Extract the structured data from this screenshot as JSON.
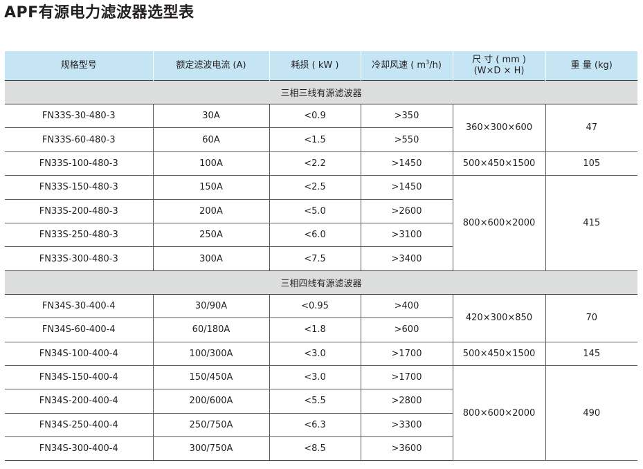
{
  "title": "APF有源电力滤波器选型表",
  "headers": {
    "model": "规格型号",
    "current": "额定滤波电流 (A)",
    "loss": "耗损 ( kW )",
    "airflow_pre": "冷却风速 ( m",
    "airflow_sup": "3",
    "airflow_post": "/h)",
    "size_line1": "尺 寸 ( mm )",
    "size_line2": "(W×D × H)",
    "weight": "重 量 (kg)"
  },
  "groups": [
    {
      "name": "三相三线有源滤波器",
      "rows": [
        {
          "model": "FN33S-30-480-3",
          "current": "30A",
          "loss": "<0.9",
          "airflow": ">350",
          "size": "360×300×600",
          "weight": "47",
          "span": 2
        },
        {
          "model": "FN33S-60-480-3",
          "current": "60A",
          "loss": "<1.5",
          "airflow": ">550"
        },
        {
          "model": "FN33S-100-480-3",
          "current": "100A",
          "loss": "<2.2",
          "airflow": ">1450",
          "size": "500×450×1500",
          "weight": "105",
          "span": 1
        },
        {
          "model": "FN33S-150-480-3",
          "current": "150A",
          "loss": "<2.5",
          "airflow": ">1450",
          "size": "800×600×2000",
          "weight": "415",
          "span": 4
        },
        {
          "model": "FN33S-200-480-3",
          "current": "200A",
          "loss": "<5.0",
          "airflow": ">2600"
        },
        {
          "model": "FN33S-250-480-3",
          "current": "250A",
          "loss": "<6.0",
          "airflow": ">3100"
        },
        {
          "model": "FN33S-300-480-3",
          "current": "300A",
          "loss": "<7.5",
          "airflow": ">3400"
        }
      ]
    },
    {
      "name": "三相四线有源滤波器",
      "rows": [
        {
          "model": "FN34S-30-400-4",
          "current": "30/90A",
          "loss": "<0.95",
          "airflow": ">400",
          "size": "420×300×850",
          "weight": "70",
          "span": 2
        },
        {
          "model": "FN34S-60-400-4",
          "current": "60/180A",
          "loss": "<1.8",
          "airflow": ">600"
        },
        {
          "model": "FN34S-100-400-4",
          "current": "100/300A",
          "loss": "<3.0",
          "airflow": ">1700",
          "size": "500×450×1500",
          "weight": "145",
          "span": 1
        },
        {
          "model": "FN34S-150-400-4",
          "current": "150/450A",
          "loss": "<3.0",
          "airflow": ">1700",
          "size": "800×600×2000",
          "weight": "490",
          "span": 4
        },
        {
          "model": "FN34S-200-400-4",
          "current": "200/600A",
          "loss": "<5.5",
          "airflow": ">2800"
        },
        {
          "model": "FN34S-250-400-4",
          "current": "250/750A",
          "loss": "<6.3",
          "airflow": ">3300"
        },
        {
          "model": "FN34S-300-400-4",
          "current": "300/750A",
          "loss": "<8.5",
          "airflow": ">3600"
        }
      ]
    }
  ]
}
